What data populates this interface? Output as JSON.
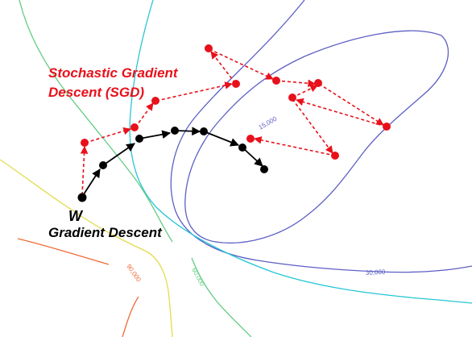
{
  "colors": {
    "sgd": "#e8111b",
    "gd": "#000000",
    "contour_inner": "#5d5fc4",
    "contour_cyan": "#27c6d6",
    "contour_green": "#62cc83",
    "contour_yellow": "#e2dc4c",
    "contour_orange": "#ee6a36"
  },
  "labels": {
    "sgd_title_line1": "Stochastic Gradient",
    "sgd_title_line2": "Descent (SGD)",
    "w": "W",
    "gd_title": "Gradient Descent"
  },
  "contour_labels": {
    "c15000": "15,000",
    "c30000": "30,000",
    "c60000": "60,000",
    "c90000": "90,000"
  }
}
